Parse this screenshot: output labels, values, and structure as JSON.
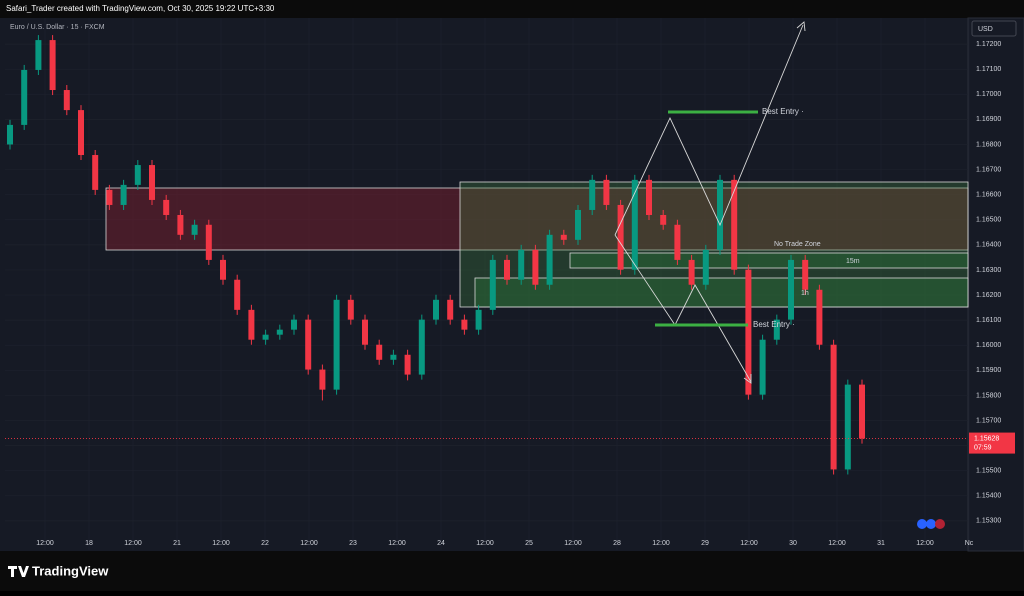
{
  "header": "Safari_Trader created with TradingView.com, Oct 30, 2025 19:22 UTC+3:30",
  "footer": "TradingView",
  "chart_data": {
    "type": "candlestick",
    "title": "Euro / U.S. Dollar · 15 · FXCM",
    "currency": "USD",
    "up_color": "#089981",
    "down_color": "#f23645",
    "grid": true,
    "ylim": [
      1.15184,
      1.17304
    ],
    "yticks": [
      {
        "value": 1.172,
        "label": "1.17200"
      },
      {
        "value": 1.171,
        "label": "1.17100"
      },
      {
        "value": 1.17,
        "label": "1.17000"
      },
      {
        "value": 1.169,
        "label": "1.16900"
      },
      {
        "value": 1.168,
        "label": "1.16800"
      },
      {
        "value": 1.167,
        "label": "1.16700"
      },
      {
        "value": 1.166,
        "label": "1.16600"
      },
      {
        "value": 1.165,
        "label": "1.16500"
      },
      {
        "value": 1.164,
        "label": "1.16400"
      },
      {
        "value": 1.163,
        "label": "1.16300"
      },
      {
        "value": 1.162,
        "label": "1.16200"
      },
      {
        "value": 1.161,
        "label": "1.16100"
      },
      {
        "value": 1.16,
        "label": "1.16000"
      },
      {
        "value": 1.159,
        "label": "1.15900"
      },
      {
        "value": 1.158,
        "label": "1.15800"
      },
      {
        "value": 1.157,
        "label": "1.15700"
      },
      {
        "value": 1.156,
        "label": "1.15600"
      },
      {
        "value": 1.155,
        "label": "1.15500"
      },
      {
        "value": 1.154,
        "label": "1.15400"
      },
      {
        "value": 1.153,
        "label": "1.15300"
      }
    ],
    "x_labels": [
      "12:00",
      "18",
      "12:00",
      "21",
      "12:00",
      "22",
      "12:00",
      "23",
      "12:00",
      "24",
      "12:00",
      "25",
      "12:00",
      "28",
      "12:00",
      "29",
      "12:00",
      "30",
      "12:00",
      "31",
      "12:00",
      "Nc"
    ],
    "last_price": 1.15628,
    "countdown": "07:59",
    "annotations": [
      "Best Entry ·",
      "No Trade Zone",
      "15m",
      "1h",
      "Best Entry ·"
    ],
    "candles": [
      [
        1.168,
        1.16898,
        1.1678,
        1.16878
      ],
      [
        1.16878,
        1.17117,
        1.16858,
        1.17097
      ],
      [
        1.17097,
        1.17236,
        1.17077,
        1.17216
      ],
      [
        1.17216,
        1.17236,
        1.16997,
        1.17017
      ],
      [
        1.17017,
        1.17037,
        1.16917,
        1.16937
      ],
      [
        1.16937,
        1.16957,
        1.16738,
        1.16758
      ],
      [
        1.16758,
        1.16778,
        1.16599,
        1.16619
      ],
      [
        1.16619,
        1.16639,
        1.16539,
        1.16559
      ],
      [
        1.16559,
        1.16659,
        1.16539,
        1.16639
      ],
      [
        1.16639,
        1.16738,
        1.16619,
        1.16718
      ],
      [
        1.16718,
        1.16738,
        1.16559,
        1.16579
      ],
      [
        1.16579,
        1.16599,
        1.16499,
        1.16519
      ],
      [
        1.16519,
        1.16539,
        1.1642,
        1.1644
      ],
      [
        1.1644,
        1.165,
        1.1642,
        1.1648
      ],
      [
        1.1648,
        1.165,
        1.1632,
        1.1634
      ],
      [
        1.1634,
        1.1636,
        1.16241,
        1.16261
      ],
      [
        1.16261,
        1.16281,
        1.16121,
        1.16141
      ],
      [
        1.16141,
        1.16161,
        1.16002,
        1.16022
      ],
      [
        1.16022,
        1.16062,
        1.16002,
        1.16042
      ],
      [
        1.16042,
        1.16082,
        1.16022,
        1.16062
      ],
      [
        1.16062,
        1.16122,
        1.16042,
        1.16102
      ],
      [
        1.16102,
        1.16122,
        1.15883,
        1.15903
      ],
      [
        1.15903,
        1.15923,
        1.1578,
        1.15823
      ],
      [
        1.15823,
        1.16201,
        1.15803,
        1.16181
      ],
      [
        1.16181,
        1.16201,
        1.16082,
        1.16102
      ],
      [
        1.16102,
        1.16122,
        1.15982,
        1.16002
      ],
      [
        1.16002,
        1.16022,
        1.15922,
        1.15942
      ],
      [
        1.15942,
        1.15982,
        1.15922,
        1.15962
      ],
      [
        1.15962,
        1.15982,
        1.1586,
        1.15883
      ],
      [
        1.15883,
        1.16122,
        1.15863,
        1.16102
      ],
      [
        1.16102,
        1.16201,
        1.16082,
        1.16181
      ],
      [
        1.16181,
        1.16201,
        1.16082,
        1.16102
      ],
      [
        1.16102,
        1.16122,
        1.16042,
        1.16062
      ],
      [
        1.16062,
        1.16161,
        1.16042,
        1.16141
      ],
      [
        1.16141,
        1.1636,
        1.16121,
        1.1634
      ],
      [
        1.1634,
        1.1636,
        1.16241,
        1.16261
      ],
      [
        1.16261,
        1.164,
        1.16241,
        1.1638
      ],
      [
        1.1638,
        1.164,
        1.16221,
        1.16241
      ],
      [
        1.16241,
        1.1646,
        1.16221,
        1.1644
      ],
      [
        1.1644,
        1.1646,
        1.164,
        1.1642
      ],
      [
        1.1642,
        1.16559,
        1.164,
        1.16539
      ],
      [
        1.16539,
        1.16679,
        1.16519,
        1.16659
      ],
      [
        1.16659,
        1.16679,
        1.16539,
        1.16559
      ],
      [
        1.16559,
        1.16579,
        1.16281,
        1.16301
      ],
      [
        1.16301,
        1.16679,
        1.16281,
        1.16659
      ],
      [
        1.16659,
        1.16679,
        1.16499,
        1.16519
      ],
      [
        1.16519,
        1.16539,
        1.1646,
        1.1648
      ],
      [
        1.1648,
        1.165,
        1.1632,
        1.1634
      ],
      [
        1.1634,
        1.1636,
        1.16221,
        1.16241
      ],
      [
        1.16241,
        1.164,
        1.16221,
        1.1638
      ],
      [
        1.1638,
        1.16679,
        1.1636,
        1.16659
      ],
      [
        1.16659,
        1.16679,
        1.16281,
        1.16301
      ],
      [
        1.16301,
        1.16321,
        1.15783,
        1.15803
      ],
      [
        1.15803,
        1.16042,
        1.15783,
        1.16022
      ],
      [
        1.16022,
        1.16122,
        1.16002,
        1.16102
      ],
      [
        1.16102,
        1.1636,
        1.16082,
        1.1634
      ],
      [
        1.1634,
        1.1636,
        1.16201,
        1.16221
      ],
      [
        1.16221,
        1.16241,
        1.15982,
        1.16002
      ],
      [
        1.16002,
        1.16022,
        1.15485,
        1.15505
      ],
      [
        1.15505,
        1.15863,
        1.15485,
        1.15843
      ],
      [
        1.15843,
        1.15863,
        1.15608,
        1.15628
      ]
    ]
  }
}
